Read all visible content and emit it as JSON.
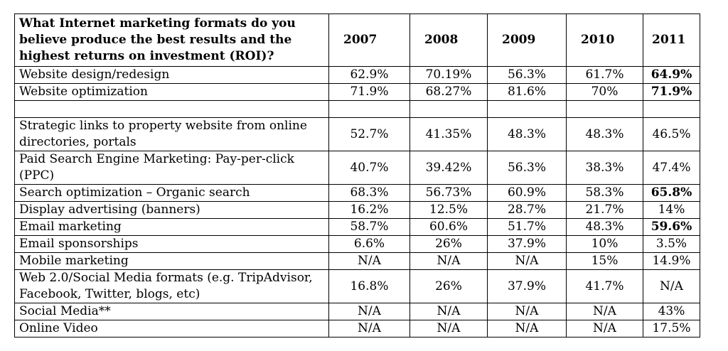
{
  "table": {
    "question": "What Internet marketing formats do you believe produce the best results and the highest returns on investment (ROI)?",
    "years": [
      "2007",
      "2008",
      "2009",
      "2010",
      "2011"
    ],
    "rows": [
      {
        "label": "Website design/redesign",
        "values": [
          "62.9%",
          "70.19%",
          "56.3%",
          "61.7%",
          "64.9%"
        ],
        "bold_last": true
      },
      {
        "label": "Website optimization",
        "values": [
          "71.9%",
          "68.27%",
          "81.6%",
          "70%",
          "71.9%"
        ],
        "bold_last": true
      },
      {
        "label": "",
        "values": [
          "",
          "",
          "",
          "",
          ""
        ],
        "spacer": true
      },
      {
        "label": "Strategic links to property website from online directories, portals",
        "values": [
          "52.7%",
          "41.35%",
          "48.3%",
          "48.3%",
          "46.5%"
        ],
        "tall": true
      },
      {
        "label": "Paid Search Engine Marketing: Pay-per-click (PPC)",
        "values": [
          "40.7%",
          "39.42%",
          "56.3%",
          "38.3%",
          "47.4%"
        ],
        "tall": true
      },
      {
        "label": "Search optimization – Organic search",
        "values": [
          "68.3%",
          "56.73%",
          "60.9%",
          "58.3%",
          "65.8%"
        ],
        "bold_last": true
      },
      {
        "label": "Display advertising (banners)",
        "values": [
          "16.2%",
          "12.5%",
          "28.7%",
          "21.7%",
          "14%"
        ]
      },
      {
        "label": "Email marketing",
        "values": [
          "58.7%",
          "60.6%",
          "51.7%",
          "48.3%",
          "59.6%"
        ],
        "bold_last": true
      },
      {
        "label": "Email sponsorships",
        "values": [
          "6.6%",
          "26%",
          "37.9%",
          "10%",
          "3.5%"
        ]
      },
      {
        "label": "Mobile marketing",
        "values": [
          "N/A",
          "N/A",
          "N/A",
          "15%",
          "14.9%"
        ]
      },
      {
        "label": "Web 2.0/Social Media formats (e.g. TripAdvisor, Facebook, Twitter, blogs, etc)",
        "values": [
          "16.8%",
          "26%",
          "37.9%",
          "41.7%",
          "N/A"
        ],
        "tall": true
      },
      {
        "label": "Social Media**",
        "values": [
          "N/A",
          "N/A",
          "N/A",
          "N/A",
          "43%"
        ]
      },
      {
        "label": "Online Video",
        "values": [
          "N/A",
          "N/A",
          "N/A",
          "N/A",
          "17.5%"
        ]
      }
    ]
  }
}
